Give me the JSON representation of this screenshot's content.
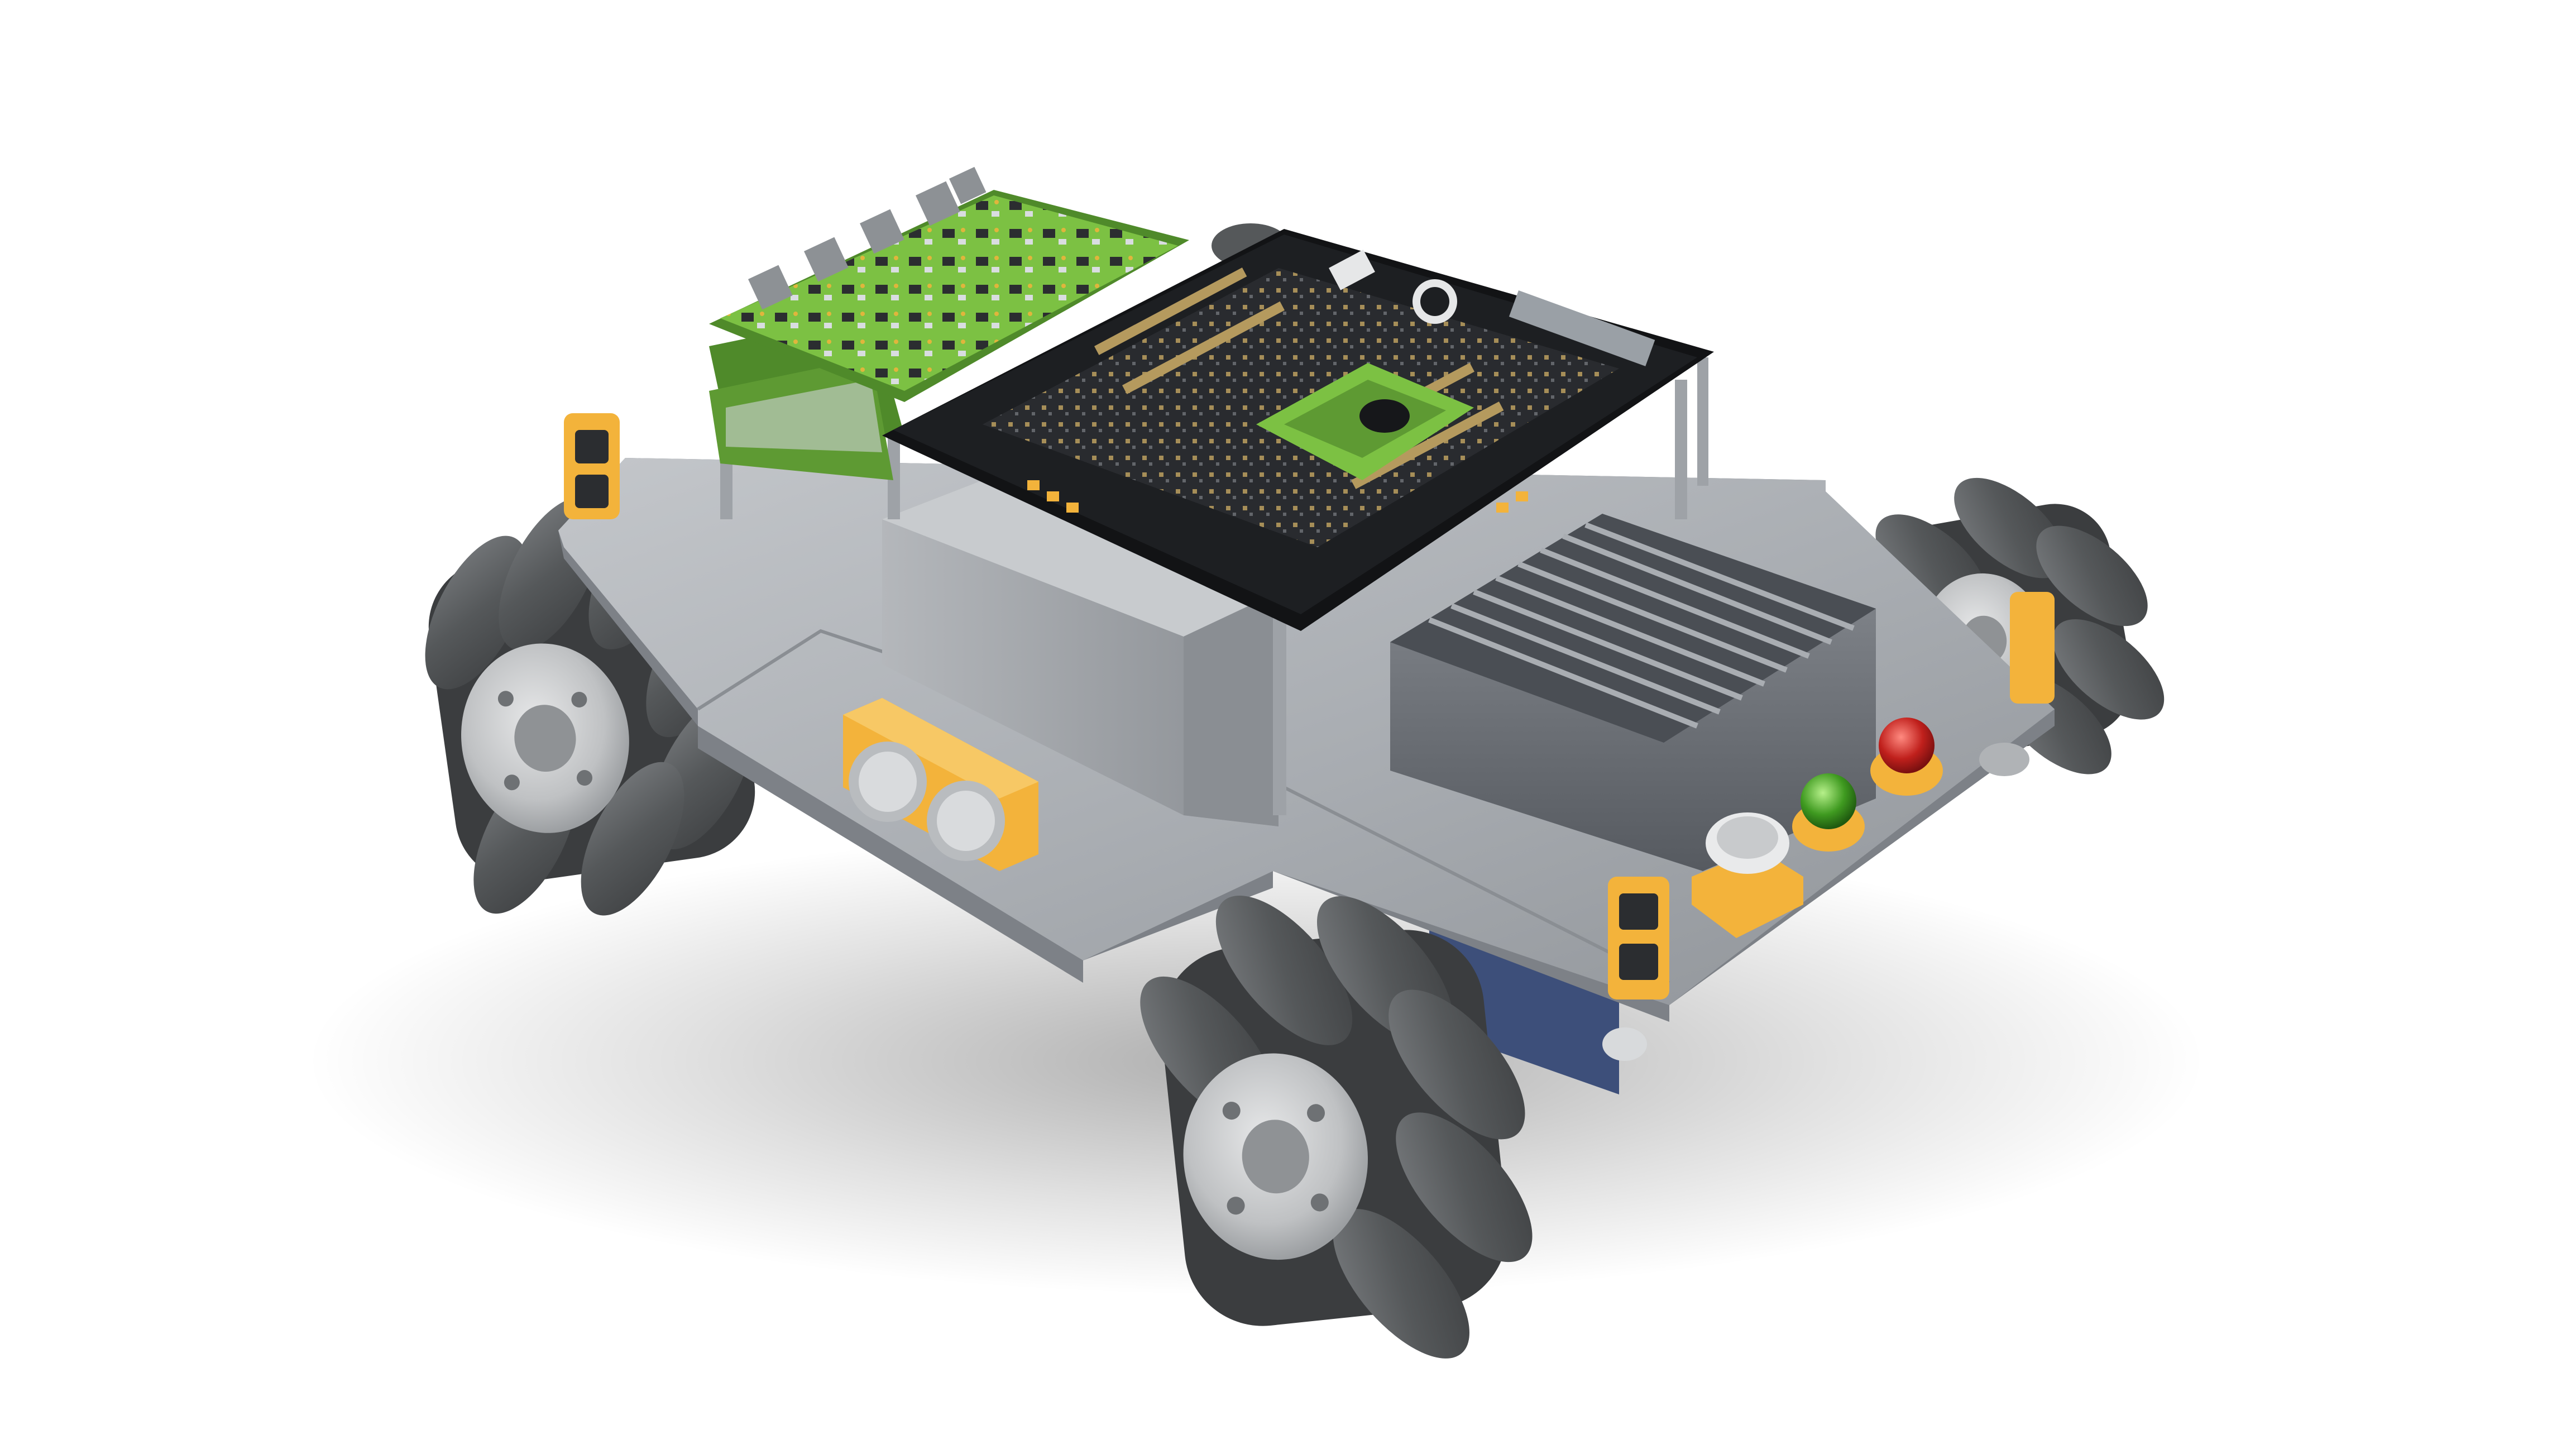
{
  "scene": {
    "background": "#ffffff",
    "colors": {
      "chassis_plate": "#a9adb3",
      "chassis_plate_edge": "#7d8187",
      "pcb_black": "#1d1f22",
      "pcb_green": "#7cc143",
      "pcb_green_dark": "#4f8a2a",
      "sensor_yellow": "#f3b33b",
      "roller_gray": "#55585a",
      "hub_light": "#c9cbcd",
      "motor_blue": "#3d4f7a",
      "battery_gray": "#9ea2a7",
      "heatsink": "#5e6268",
      "led_red": "#c0201c",
      "led_green": "#3f9a20"
    },
    "icons": [
      "mecanum-wheel-icon",
      "ultrasonic-sensor-icon",
      "led-indicator-icon",
      "microphone-icon",
      "heatsink-icon"
    ]
  }
}
